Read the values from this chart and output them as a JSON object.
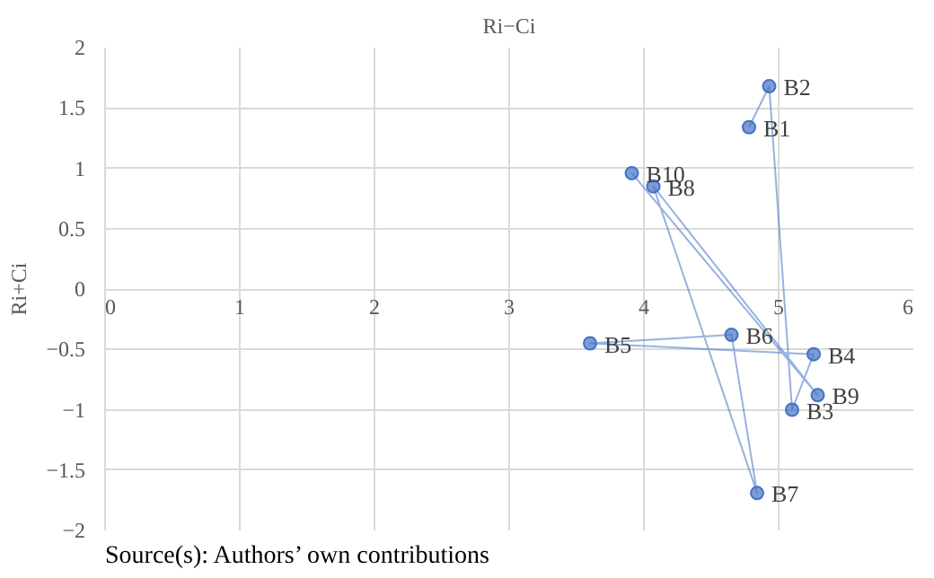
{
  "chart_data": {
    "type": "line",
    "title": "Ri−Ci",
    "ylabel": "Ri+Ci",
    "annotations": [
      "Source(s): Authors’ own contributions"
    ],
    "x": [
      4.78,
      4.93,
      5.1,
      5.26,
      3.6,
      4.65,
      4.84,
      4.07,
      5.29,
      3.91
    ],
    "series": [
      {
        "color": "#4472c4",
        "values": [
          1.34,
          1.68,
          -1.0,
          -0.54,
          -0.45,
          -0.38,
          -1.69,
          0.85,
          -0.88,
          0.96
        ],
        "value_labels": [
          "B1",
          "B2",
          "B3",
          "B4",
          "B5",
          "B6",
          "B7",
          "B8",
          "B9",
          "B10"
        ]
      }
    ],
    "xlim": [
      0,
      6
    ],
    "ylim": [
      -2,
      2
    ],
    "xticks": [
      0,
      1,
      2,
      3,
      4,
      5,
      6
    ],
    "yticks": [
      -2,
      -1.5,
      -1,
      -0.5,
      0,
      0.5,
      1,
      1.5,
      2
    ],
    "grid": true,
    "marker": "circle",
    "line_style": "solid"
  }
}
